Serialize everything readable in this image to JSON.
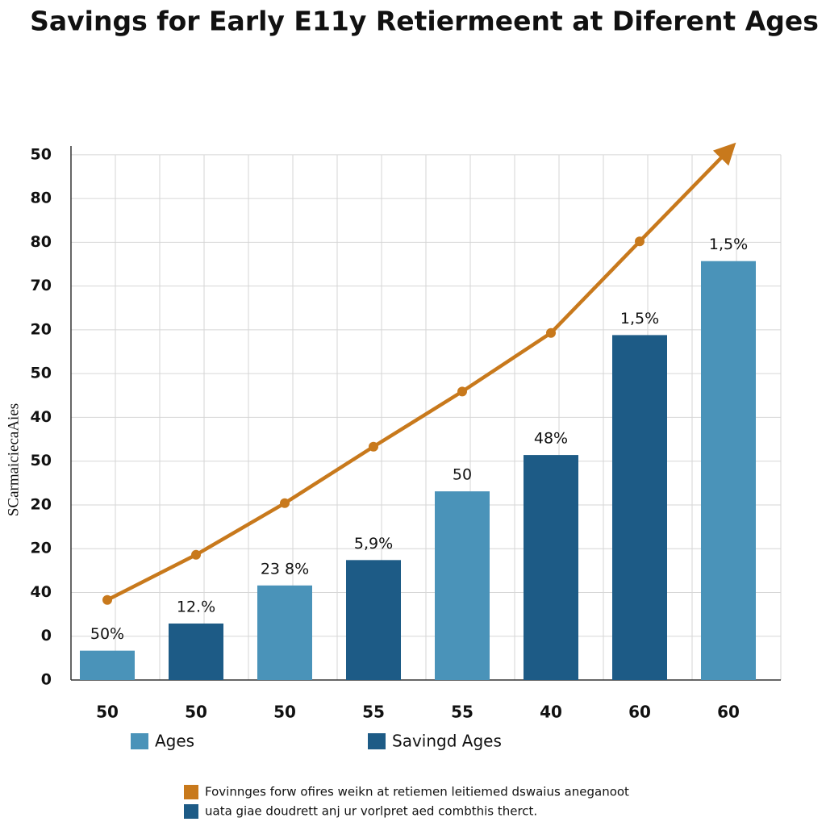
{
  "chart_data": {
    "type": "bar",
    "title": "Savings for Early E11y Retiermeent at Diferent Ages",
    "y_label": "SCarmaiciecaAies",
    "categories": [
      "50",
      "50",
      "50",
      "55",
      "55",
      "40",
      "60",
      "60"
    ],
    "series": [
      {
        "name": "Ages",
        "type": "bar",
        "color": "#4a93b9",
        "values": [
          0.67,
          null,
          2.16,
          null,
          4.31,
          null,
          null,
          9.57
        ]
      },
      {
        "name": "Savingd Ages",
        "type": "bar",
        "color": "#1d5b86",
        "values": [
          null,
          1.29,
          null,
          2.74,
          null,
          5.14,
          7.88,
          null
        ]
      },
      {
        "type": "line",
        "color": "#c8791c",
        "values": [
          1.83,
          2.86,
          4.04,
          5.33,
          6.59,
          7.93,
          10.02,
          12.1
        ]
      }
    ],
    "bar_labels": [
      "50%",
      "12.%",
      "23 8%",
      "5,9%",
      "50",
      "48%",
      "1,5%",
      "1,5%"
    ],
    "ylim": [
      0,
      12.2
    ],
    "yticks": [
      {
        "value": 0,
        "label": "0"
      },
      {
        "value": 1,
        "label": "0"
      },
      {
        "value": 2,
        "label": "40"
      },
      {
        "value": 3,
        "label": "20"
      },
      {
        "value": 4,
        "label": "20"
      },
      {
        "value": 5,
        "label": "50"
      },
      {
        "value": 6,
        "label": "40"
      },
      {
        "value": 7,
        "label": "50"
      },
      {
        "value": 8,
        "label": "20"
      },
      {
        "value": 9,
        "label": "70"
      },
      {
        "value": 10,
        "label": "80"
      },
      {
        "value": 11,
        "label": "80"
      },
      {
        "value": 12,
        "label": "50"
      }
    ],
    "grid": true,
    "footnotes": [
      {
        "color": "#c8791c",
        "text": "Fovinnges forw ofires weikn at retiemen leitiemed dswaius aneganoot"
      },
      {
        "color": "#1d5b86",
        "text": "uata giae doudrett anj ur vorlpret aed combthis therct."
      }
    ]
  }
}
